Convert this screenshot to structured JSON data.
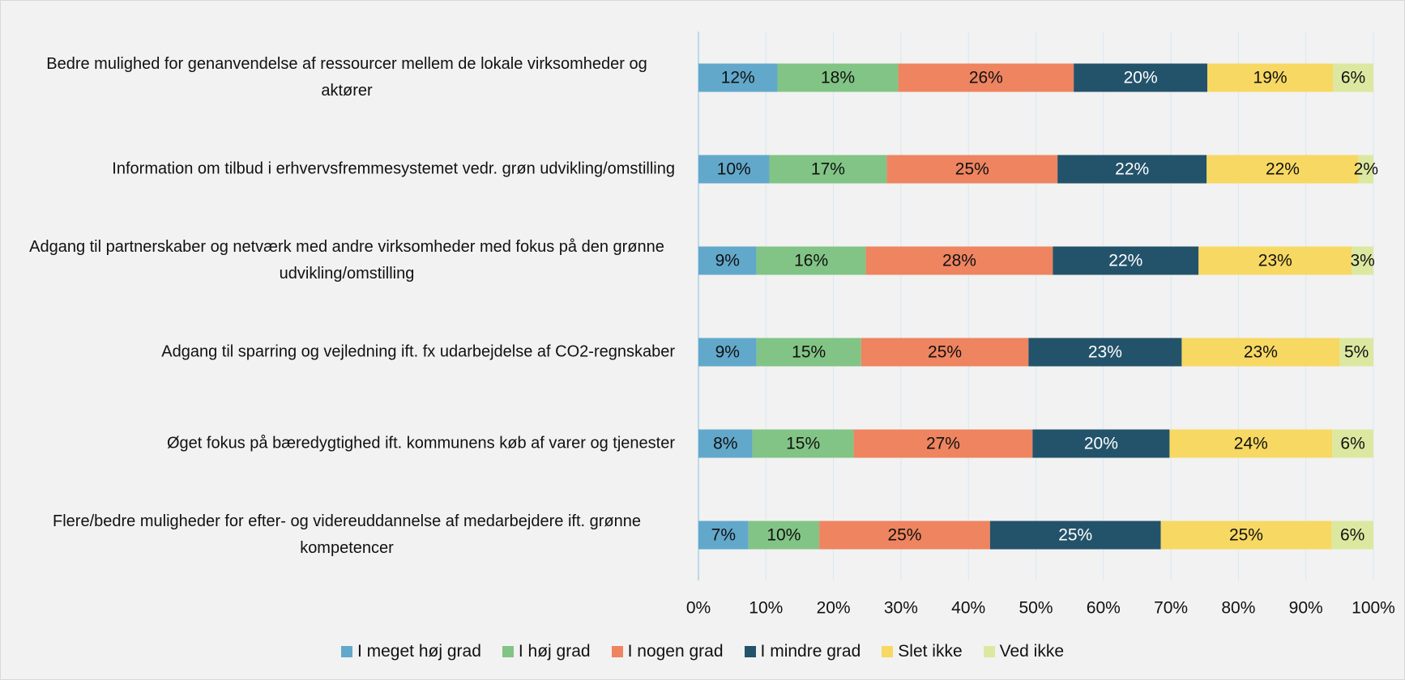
{
  "chart_data": {
    "type": "stacked_barh",
    "categories": [
      "Bedre mulighed for genanvendelse af ressourcer mellem de lokale virksomheder og aktører",
      "Information om tilbud i erhvervsfremmesystemet vedr. grøn udvikling/omstilling",
      "Adgang til partnerskaber og netværk med andre virksomheder med fokus på den grønne udvikling/omstilling",
      "Adgang til sparring og vejledning ift. fx udarbejdelse af CO2-regnskaber",
      "Øget fokus på bæredygtighed ift. kommunens køb af varer og tjenester",
      "Flere/bedre muligheder for efter- og videreuddannelse af medarbejdere ift. grønne kompetencer"
    ],
    "series": [
      {
        "name": "I meget høj grad",
        "color": "#62a8cb",
        "values": [
          11.7,
          10.5,
          8.6,
          8.6,
          8.0,
          7.4
        ],
        "value_labels": [
          "12%",
          "10%",
          "9%",
          "9%",
          "8%",
          "7%"
        ]
      },
      {
        "name": "I høj grad",
        "color": "#82c485",
        "values": [
          17.9,
          17.4,
          16.2,
          15.5,
          15.0,
          10.5
        ],
        "value_labels": [
          "18%",
          "17%",
          "16%",
          "15%",
          "15%",
          "10%"
        ]
      },
      {
        "name": "I nogen grad",
        "color": "#ee8460",
        "values": [
          26.0,
          25.3,
          27.7,
          24.8,
          26.5,
          25.3
        ],
        "value_labels": [
          "26%",
          "25%",
          "28%",
          "25%",
          "27%",
          "25%"
        ]
      },
      {
        "name": "I mindre grad",
        "color": "#23536a",
        "values": [
          19.8,
          22.1,
          21.6,
          22.7,
          20.3,
          25.3
        ],
        "value_labels": [
          "20%",
          "22%",
          "22%",
          "23%",
          "20%",
          "25%"
        ]
      },
      {
        "name": "Slet ikke",
        "color": "#f7d862",
        "values": [
          18.6,
          22.5,
          22.7,
          23.4,
          24.1,
          25.3
        ],
        "value_labels": [
          "19%",
          "22%",
          "23%",
          "23%",
          "24%",
          "25%"
        ]
      },
      {
        "name": "Ved ikke",
        "color": "#dce8a0",
        "values": [
          6.0,
          2.2,
          3.2,
          5.0,
          6.1,
          6.2
        ],
        "value_labels": [
          "6%",
          "2%",
          "3%",
          "5%",
          "6%",
          "6%"
        ]
      }
    ],
    "xlim": [
      0,
      100
    ],
    "xticks": [
      {
        "value": 0,
        "label": "0%"
      },
      {
        "value": 10,
        "label": "10%"
      },
      {
        "value": 20,
        "label": "20%"
      },
      {
        "value": 30,
        "label": "30%"
      },
      {
        "value": 40,
        "label": "40%"
      },
      {
        "value": 50,
        "label": "50%"
      },
      {
        "value": 60,
        "label": "60%"
      },
      {
        "value": 70,
        "label": "70%"
      },
      {
        "value": 80,
        "label": "80%"
      },
      {
        "value": 90,
        "label": "90%"
      },
      {
        "value": 100,
        "label": "100%"
      }
    ],
    "grid": true,
    "legend": "bottom"
  }
}
